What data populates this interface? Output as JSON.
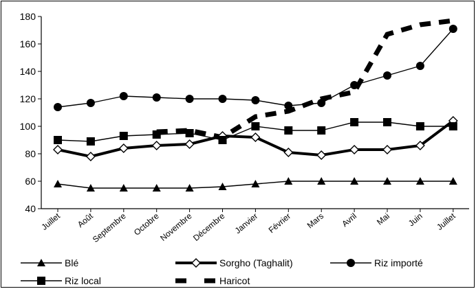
{
  "chart_data": {
    "type": "line",
    "title": "",
    "xlabel": "",
    "ylabel": "",
    "ylim": [
      40,
      180
    ],
    "yticks": [
      40,
      60,
      80,
      100,
      120,
      140,
      160,
      180
    ],
    "grid": false,
    "legend_position": "bottom",
    "categories": [
      "Juillet",
      "Août",
      "Septembre",
      "Octobre",
      "Novembre",
      "Décembre",
      "Janvier",
      "Février",
      "Mars",
      "Avril",
      "Mai",
      "Juin",
      "Juillet"
    ],
    "series": [
      {
        "name": "Blé",
        "style": "thin-line-triangle",
        "color": "#000000",
        "values": [
          58,
          55,
          55,
          55,
          55,
          56,
          58,
          60,
          60,
          60,
          60,
          60,
          60
        ]
      },
      {
        "name": "Sorgho (Taghalit)",
        "style": "thick-line-open-diamond",
        "color": "#000000",
        "values": [
          83,
          78,
          84,
          86,
          87,
          93,
          92,
          81,
          79,
          83,
          83,
          86,
          104
        ]
      },
      {
        "name": "Riz importé",
        "style": "thin-line-circle",
        "color": "#000000",
        "values": [
          114,
          117,
          122,
          121,
          120,
          120,
          119,
          115,
          117,
          130,
          137,
          144,
          171
        ]
      },
      {
        "name": "Riz local",
        "style": "thin-line-square",
        "color": "#000000",
        "values": [
          90,
          89,
          93,
          94,
          95,
          90,
          100,
          97,
          97,
          103,
          103,
          100,
          100
        ]
      },
      {
        "name": "Haricot",
        "style": "thick-dashed",
        "color": "#000000",
        "values": [
          null,
          null,
          null,
          96,
          97,
          92,
          107,
          111,
          120,
          125,
          167,
          174,
          177
        ]
      }
    ]
  }
}
